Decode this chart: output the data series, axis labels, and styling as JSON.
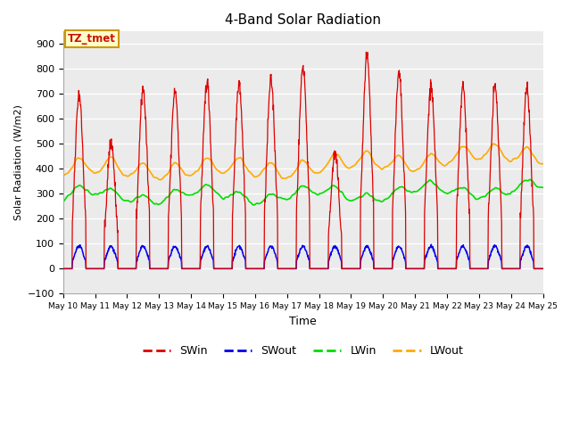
{
  "title": "4-Band Solar Radiation",
  "xlabel": "Time",
  "ylabel": "Solar Radiation (W/m2)",
  "ylim": [
    -100,
    950
  ],
  "yticks": [
    -100,
    0,
    100,
    200,
    300,
    400,
    500,
    600,
    700,
    800,
    900
  ],
  "background_color": "#ebebeb",
  "fig_bg": "#ffffff",
  "colors": {
    "SWin": "#dd0000",
    "SWout": "#0000ee",
    "LWin": "#00dd00",
    "LWout": "#ffaa00"
  },
  "annotation": "TZ_tmet",
  "annotation_bg": "#ffffcc",
  "annotation_border": "#cc9900",
  "n_days": 15,
  "points_per_day": 96,
  "SWin_peaks": [
    700,
    510,
    720,
    715,
    750,
    750,
    755,
    810,
    460,
    850,
    780,
    730,
    730,
    730,
    720
  ],
  "LWout_base": 370,
  "LWin_base": 275
}
